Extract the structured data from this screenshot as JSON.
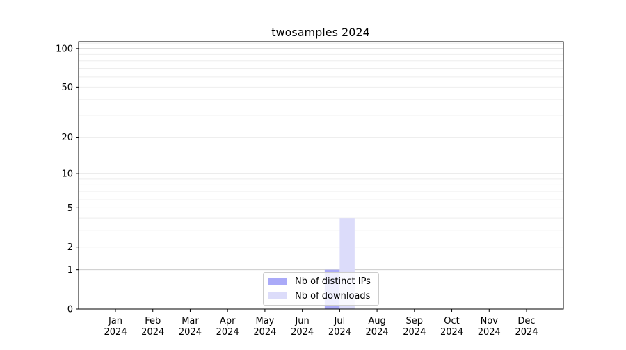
{
  "chart_data": {
    "type": "bar",
    "title": "twosamples 2024",
    "xlabel": "",
    "ylabel": "",
    "categories": [
      "Jan\n2024",
      "Feb\n2024",
      "Mar\n2024",
      "Apr\n2024",
      "May\n2024",
      "Jun\n2024",
      "Jul\n2024",
      "Aug\n2024",
      "Sep\n2024",
      "Oct\n2024",
      "Nov\n2024",
      "Dec\n2024"
    ],
    "yscale": "log(1+y)",
    "ylim": [
      0,
      113
    ],
    "yticks": [
      0,
      1,
      2,
      5,
      10,
      20,
      50,
      100
    ],
    "grid": true,
    "legend_position": "lower-center",
    "series": [
      {
        "name": "Nb of distinct IPs",
        "color": "#aaaaf8",
        "values": [
          0,
          0,
          0,
          0,
          0,
          0,
          1,
          0,
          0,
          0,
          0,
          0
        ]
      },
      {
        "name": "Nb of downloads",
        "color": "#dcdcfa",
        "values": [
          0,
          0,
          0,
          0,
          0,
          0,
          4,
          0,
          0,
          0,
          0,
          0
        ]
      }
    ]
  }
}
